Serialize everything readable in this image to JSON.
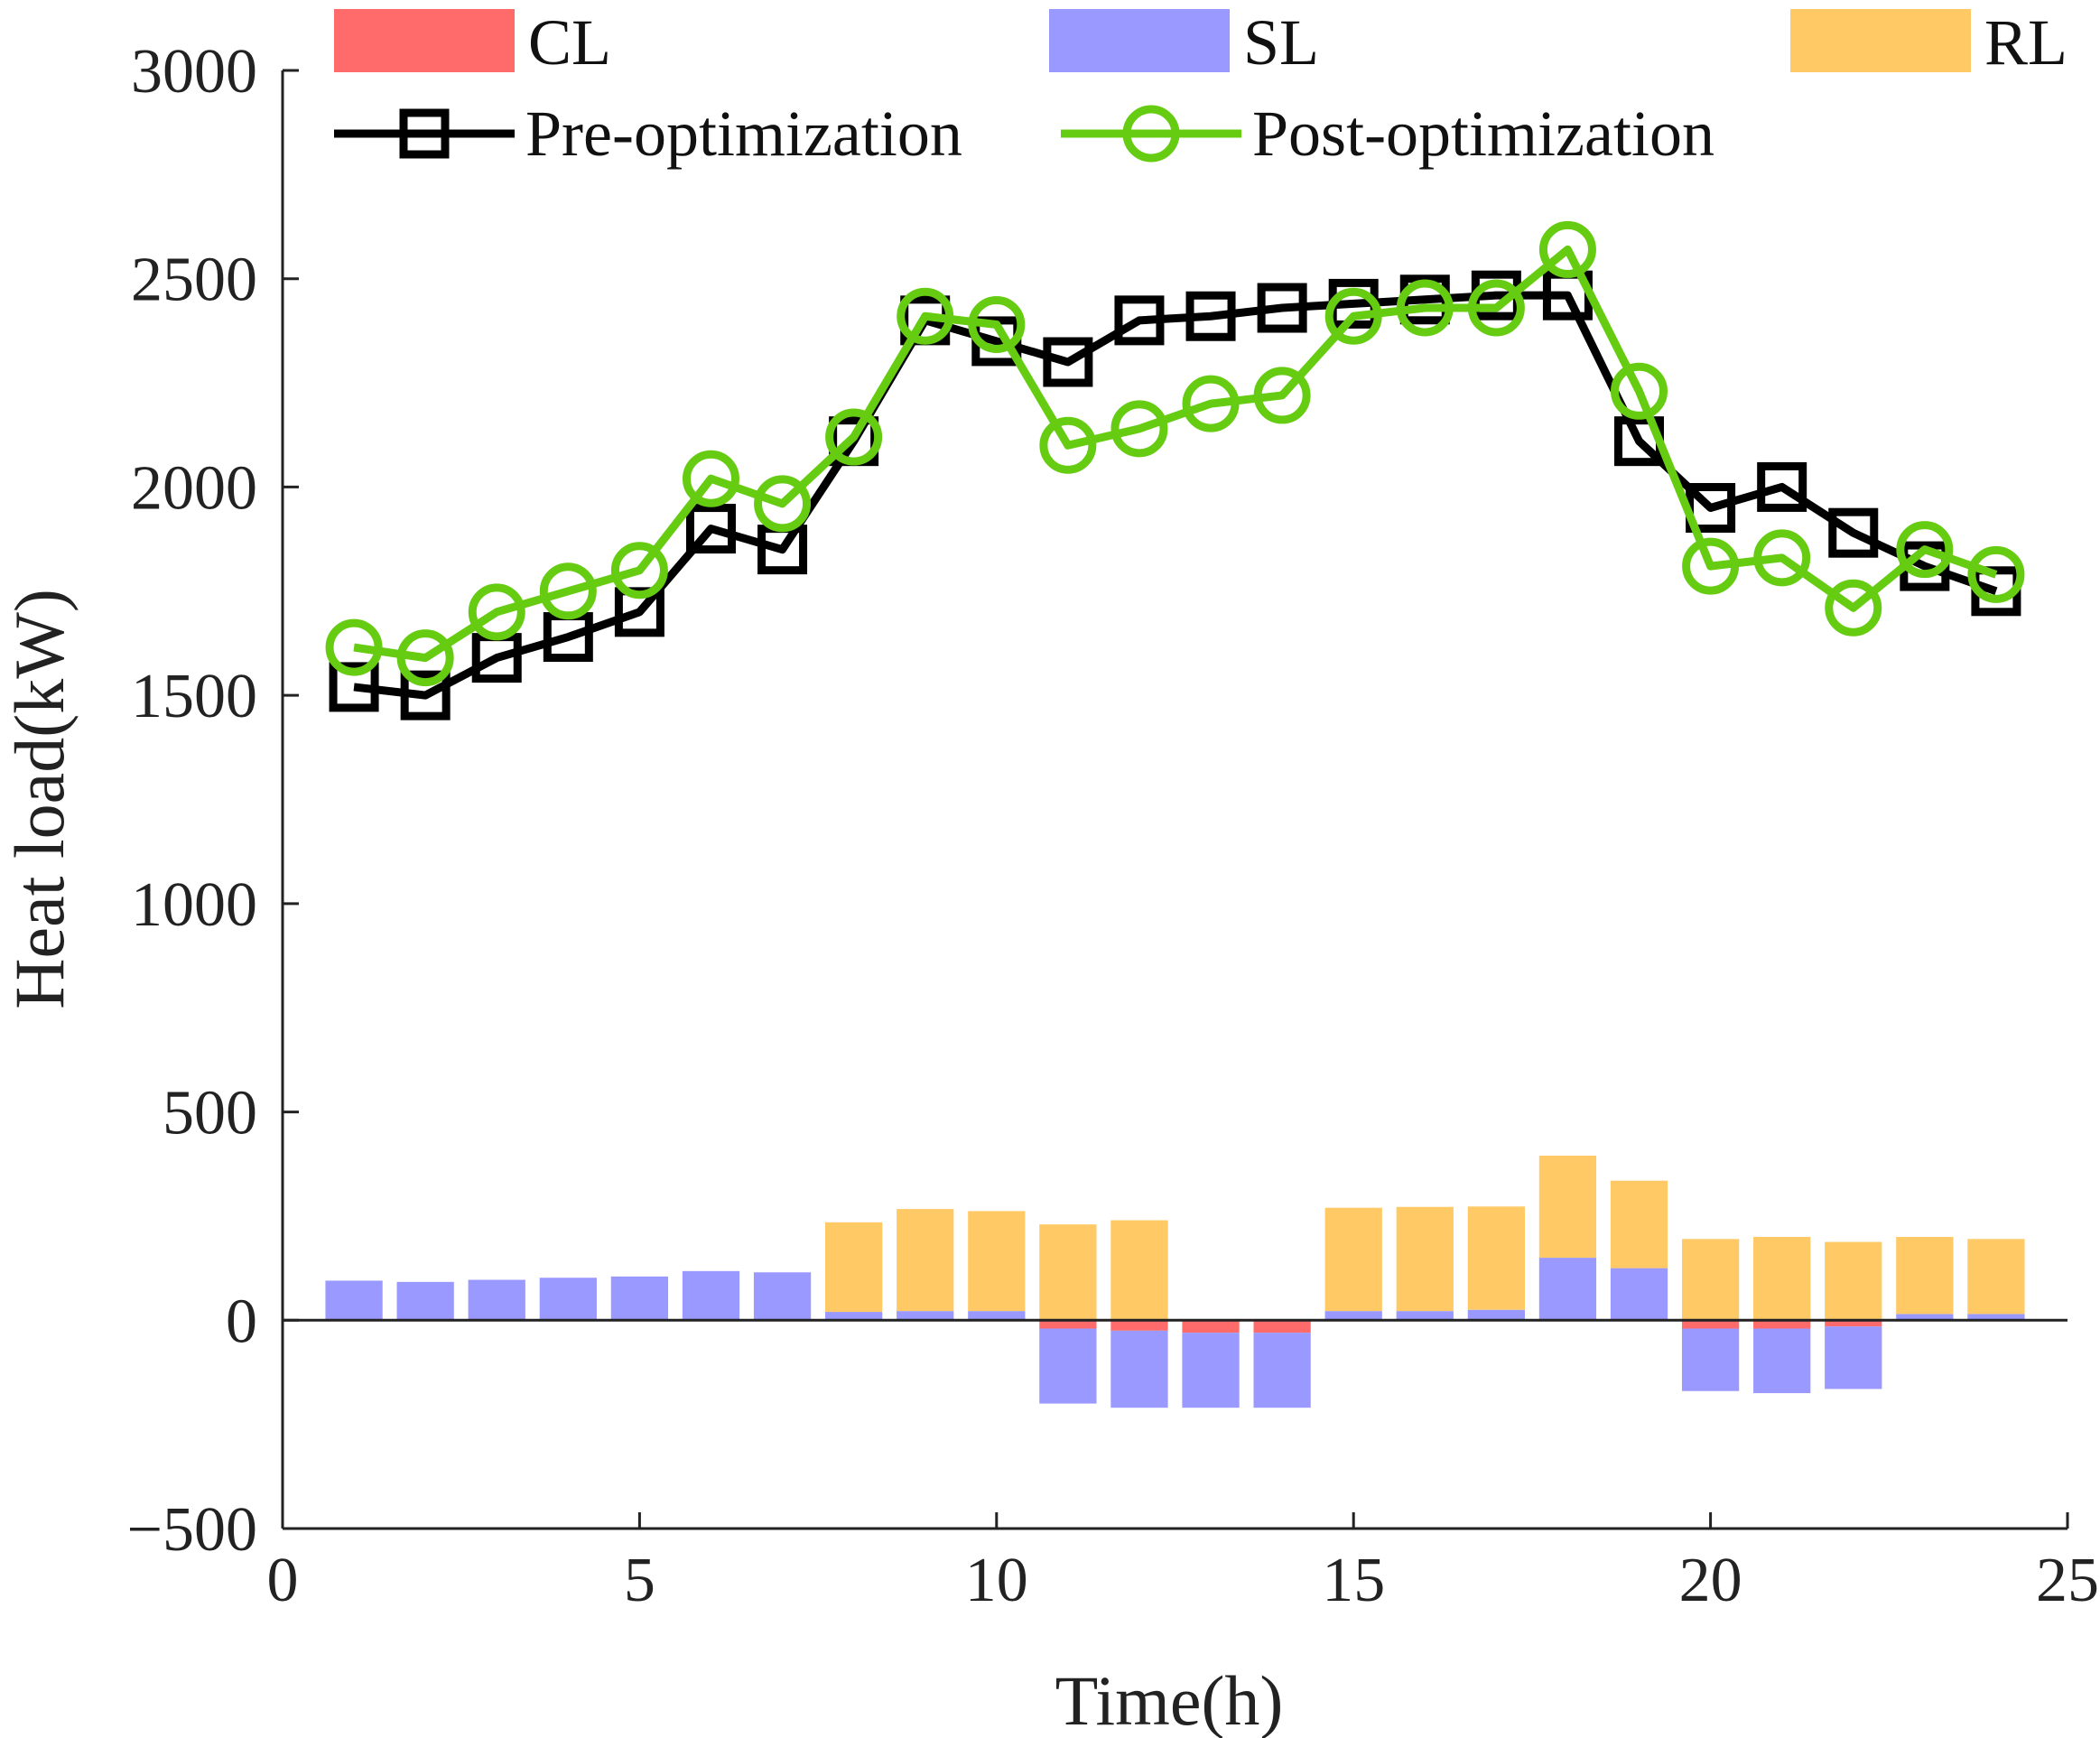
{
  "chart_data": {
    "type": "bar+line",
    "title": "",
    "xlabel": "Time(h)",
    "ylabel": "Heat load(kW)",
    "xlim": [
      0,
      25
    ],
    "ylim": [
      -500,
      3000
    ],
    "xticks": [
      0,
      5,
      10,
      15,
      20,
      25
    ],
    "yticks": [
      -500,
      0,
      500,
      1000,
      1500,
      2000,
      2500,
      3000
    ],
    "x": [
      1,
      2,
      3,
      4,
      5,
      6,
      7,
      8,
      9,
      10,
      11,
      12,
      13,
      14,
      15,
      16,
      17,
      18,
      19,
      20,
      21,
      22,
      23,
      24
    ],
    "bar_series": [
      {
        "name": "CL",
        "color": "#ff6b6b",
        "values": [
          0,
          0,
          0,
          0,
          0,
          0,
          0,
          0,
          0,
          0,
          -20,
          -25,
          -30,
          -30,
          0,
          0,
          0,
          0,
          0,
          -20,
          -20,
          -15,
          0,
          0
        ]
      },
      {
        "name": "SL",
        "color": "#9999ff",
        "values": [
          95,
          92,
          97,
          102,
          105,
          118,
          115,
          20,
          22,
          22,
          -180,
          -185,
          -180,
          -180,
          22,
          22,
          25,
          150,
          125,
          -150,
          -155,
          -150,
          15,
          15
        ]
      },
      {
        "name": "RL",
        "color": "#ffc966",
        "values": [
          0,
          0,
          0,
          0,
          0,
          0,
          0,
          215,
          245,
          240,
          230,
          240,
          0,
          0,
          248,
          250,
          248,
          245,
          210,
          195,
          200,
          188,
          185,
          180
        ]
      }
    ],
    "line_series": [
      {
        "name": "Pre-optimization",
        "color": "#000000",
        "marker": "square",
        "values": [
          1520,
          1500,
          1590,
          1640,
          1700,
          1900,
          1850,
          2110,
          2400,
          2350,
          2300,
          2400,
          2410,
          2430,
          2440,
          2450,
          2460,
          2460,
          2110,
          1950,
          2000,
          1890,
          1810,
          1750
        ]
      },
      {
        "name": "Post-optimization",
        "color": "#66cc11",
        "marker": "circle",
        "values": [
          1615,
          1590,
          1700,
          1750,
          1800,
          2020,
          1960,
          2120,
          2410,
          2390,
          2100,
          2140,
          2200,
          2220,
          2410,
          2430,
          2430,
          2570,
          2230,
          1810,
          1830,
          1710,
          1850,
          1790
        ]
      }
    ],
    "legend": [
      {
        "label": "CL",
        "kind": "bar",
        "color": "#ff6b6b"
      },
      {
        "label": "SL",
        "kind": "bar",
        "color": "#9999ff"
      },
      {
        "label": "RL",
        "kind": "bar",
        "color": "#ffc966"
      },
      {
        "label": "Pre-optimization",
        "kind": "line",
        "color": "#000000",
        "marker": "square"
      },
      {
        "label": "Post-optimization",
        "kind": "line",
        "color": "#66cc11",
        "marker": "circle"
      }
    ],
    "legend_position": "top",
    "grid": false
  }
}
